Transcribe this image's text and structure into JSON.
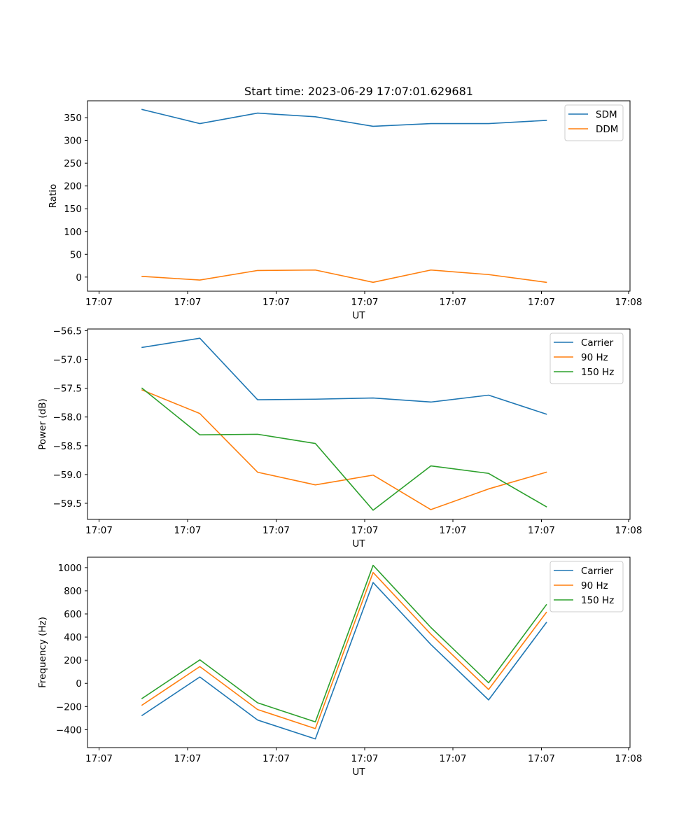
{
  "title": "Start time: 2023-06-29 17:07:01.629681",
  "chart_data": [
    {
      "type": "line",
      "xlabel": "UT",
      "ylabel": "Ratio",
      "x_tick_labels": [
        "17:07",
        "17:07",
        "17:07",
        "17:07",
        "17:07",
        "17:07",
        "17:08"
      ],
      "y_ticks": [
        0,
        50,
        100,
        150,
        200,
        250,
        300,
        350
      ],
      "ylim": [
        -31,
        387
      ],
      "legend_position": "upper right",
      "series": [
        {
          "name": "SDM",
          "color": "#1f77b4",
          "values": [
            368,
            337,
            360,
            352,
            331,
            337,
            337,
            344
          ]
        },
        {
          "name": "DDM",
          "color": "#ff7f0e",
          "values": [
            1.5,
            -6.5,
            14.5,
            15.5,
            -11.5,
            15.5,
            5.5,
            -11.5
          ]
        }
      ]
    },
    {
      "type": "line",
      "xlabel": "UT",
      "ylabel": "Power (dB)",
      "x_tick_labels": [
        "17:07",
        "17:07",
        "17:07",
        "17:07",
        "17:07",
        "17:07",
        "17:08"
      ],
      "y_ticks": [
        -56.5,
        -57.0,
        -57.5,
        -58.0,
        -58.5,
        -59.0,
        -59.5
      ],
      "y_tick_labels": [
        "−56.5",
        "−57.0",
        "−57.5",
        "−58.0",
        "−58.5",
        "−59.0",
        "−59.5"
      ],
      "ylim": [
        -59.78,
        -56.47
      ],
      "legend_position": "upper right",
      "series": [
        {
          "name": "Carrier",
          "color": "#1f77b4",
          "values": [
            -56.79,
            -56.63,
            -57.7,
            -57.69,
            -57.67,
            -57.74,
            -57.62,
            -57.95
          ]
        },
        {
          "name": "90 Hz",
          "color": "#ff7f0e",
          "values": [
            -57.53,
            -57.94,
            -58.96,
            -59.18,
            -59.01,
            -59.61,
            -59.25,
            -58.96
          ]
        },
        {
          "name": "150 Hz",
          "color": "#2ca02c",
          "values": [
            -57.5,
            -58.31,
            -58.3,
            -58.46,
            -59.62,
            -58.85,
            -58.98,
            -59.56
          ]
        }
      ]
    },
    {
      "type": "line",
      "xlabel": "UT",
      "ylabel": "Frequency (Hz)",
      "x_tick_labels": [
        "17:07",
        "17:07",
        "17:07",
        "17:07",
        "17:07",
        "17:07",
        "17:08"
      ],
      "y_ticks": [
        -400,
        -200,
        0,
        200,
        400,
        600,
        800,
        1000
      ],
      "y_tick_labels": [
        "−400",
        "−200",
        "0",
        "200",
        "400",
        "600",
        "800",
        "1000"
      ],
      "ylim": [
        -555,
        1090
      ],
      "legend_position": "upper right",
      "series": [
        {
          "name": "Carrier",
          "color": "#1f77b4",
          "values": [
            -277,
            55,
            -317,
            -480,
            871,
            336,
            -143,
            525
          ]
        },
        {
          "name": "90 Hz",
          "color": "#ff7f0e",
          "values": [
            -188,
            145,
            -226,
            -391,
            958,
            425,
            -53,
            613
          ]
        },
        {
          "name": "150 Hz",
          "color": "#2ca02c",
          "values": [
            -130,
            203,
            -168,
            -333,
            1020,
            483,
            5,
            679
          ]
        }
      ]
    }
  ]
}
